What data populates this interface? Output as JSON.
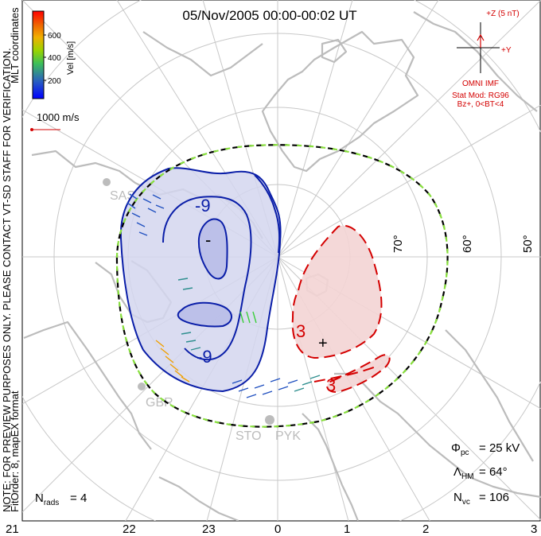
{
  "title": "05/Nov/2005 00:00-00:02 UT",
  "colorbar": {
    "label": "Vel [m/s]",
    "ticks": [
      200,
      400,
      600
    ],
    "colors": [
      "#0000ff",
      "#2050c0",
      "#2f8f8f",
      "#3ccf3c",
      "#b8d800",
      "#f0b000",
      "#f07000",
      "#e02000",
      "#ff0000"
    ]
  },
  "coordinates_label": "MLT coordinates",
  "scale_vector_label": "1000 m/s",
  "note": "NOTE: FOR PREVIEW PURPOSES ONLY. PLEASE CONTACT VT-SD STAFF FOR VERIFICATION.",
  "fit_order": "FitOrder: 8, mapEX format",
  "imf": {
    "header": "+Z (5 nT)",
    "y_label": "+Y",
    "source": "OMNI IMF",
    "stat_mod": "Stat Mod: RG96",
    "condition": "Bz+, 0<BT<4"
  },
  "stations": [
    "SAS",
    "GBR",
    "STO",
    "PYK"
  ],
  "stats": {
    "phi_pc": "25 kV",
    "lambda_hm": "64°",
    "n_vc": "106",
    "n_rads": "4"
  },
  "chart_data": {
    "type": "polar-convection-map",
    "title": "05/Nov/2005 00:00-00:02 UT",
    "mlt_ticks": [
      "21",
      "22",
      "23",
      "0",
      "1",
      "2",
      "3"
    ],
    "latitude_labels": [
      "70°",
      "60°",
      "50°"
    ],
    "contours": [
      {
        "polarity": "negative",
        "label": "-9"
      },
      {
        "polarity": "negative",
        "label": "-9"
      },
      {
        "polarity": "negative",
        "label": "-"
      },
      {
        "polarity": "positive",
        "label": "3"
      },
      {
        "polarity": "positive",
        "label": "3"
      },
      {
        "polarity": "positive",
        "label": "+"
      }
    ],
    "cross_polar_cap_potential_kV": 25,
    "heppner_maynard_boundary_deg": 64,
    "vector_count": 106,
    "radar_count": 4
  }
}
